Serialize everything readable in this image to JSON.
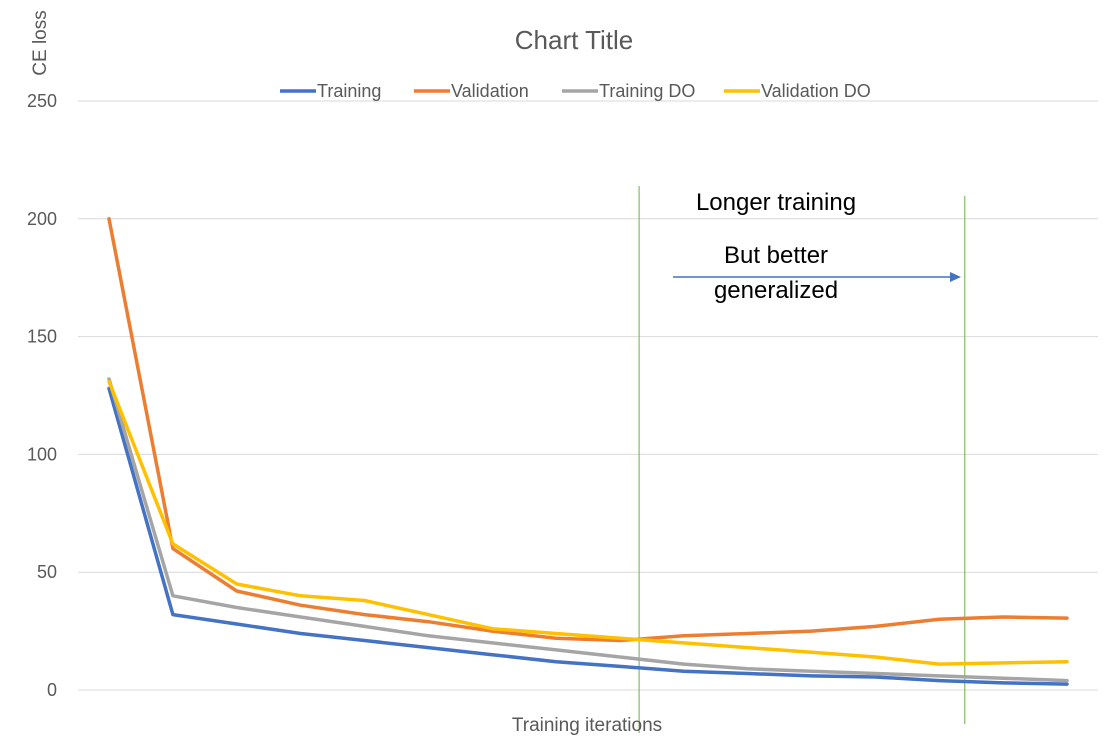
{
  "chart_data": {
    "type": "line",
    "title": "Chart Title",
    "xlabel": "Training iterations",
    "ylabel": "CE loss",
    "ylim": [
      0,
      250
    ],
    "yticks": [
      "0",
      "50",
      "100",
      "150",
      "200",
      "250"
    ],
    "grid": true,
    "legend_position": "top",
    "x": [
      1,
      2,
      3,
      4,
      5,
      6,
      7,
      8,
      9,
      10,
      11,
      12,
      13,
      14,
      15,
      16
    ],
    "series": [
      {
        "name": "Training",
        "color": "#4472C4",
        "values": [
          128,
          32,
          28,
          24,
          21,
          18,
          15,
          12,
          10,
          8,
          7,
          6,
          5.5,
          4,
          3,
          2.5
        ]
      },
      {
        "name": "Validation",
        "color": "#ED7D31",
        "values": [
          200,
          60,
          42,
          36,
          32,
          29,
          25,
          22,
          21,
          23,
          24,
          25,
          27,
          30,
          31,
          30.5
        ]
      },
      {
        "name": "Training DO",
        "color": "#A5A5A5",
        "values": [
          132,
          40,
          35,
          31,
          27,
          23,
          20,
          17,
          14,
          11,
          9,
          8,
          7,
          6,
          5,
          4
        ]
      },
      {
        "name": "Validation DO",
        "color": "#FFC000",
        "values": [
          131,
          62,
          45,
          40,
          38,
          32,
          26,
          24,
          22,
          20,
          18,
          16,
          14,
          11,
          11.5,
          12
        ]
      }
    ],
    "annotations": {
      "line1": "Longer training",
      "line2": "But better",
      "line3": "generalized"
    },
    "marker_lines_x": [
      9.3,
      14.4
    ],
    "marker_line_color": "#70AD47",
    "arrow_color": "#4472C4",
    "grid_color": "#D9D9D9"
  }
}
